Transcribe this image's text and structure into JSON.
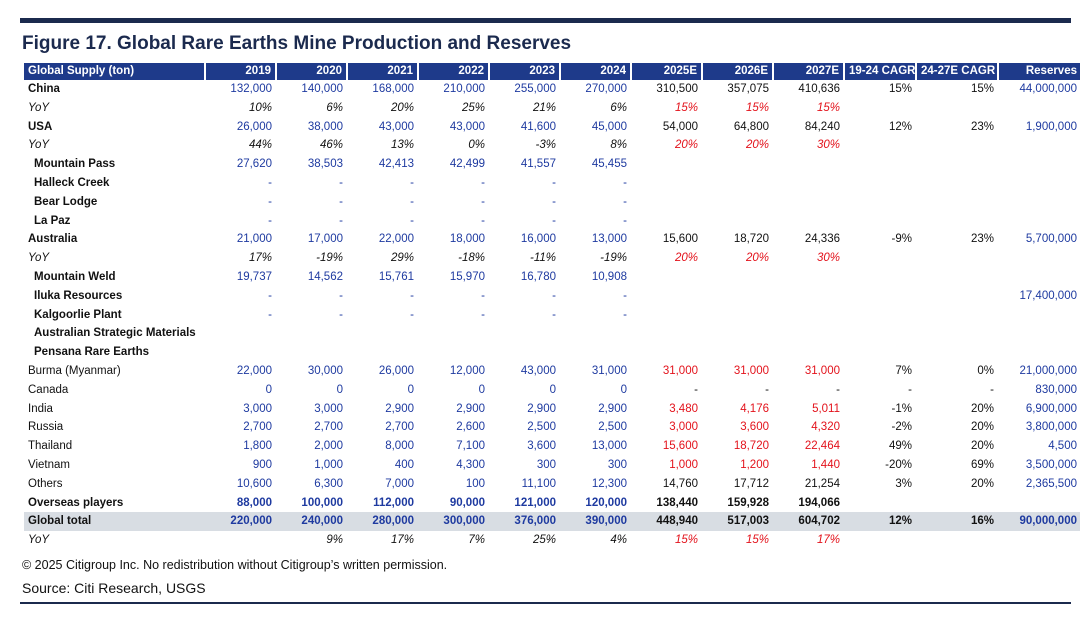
{
  "title": "Figure 17. Global Rare Earths Mine Production and Reserves",
  "header": [
    "Global Supply (ton)",
    "2019",
    "2020",
    "2021",
    "2022",
    "2023",
    "2024",
    "2025E",
    "2026E",
    "2027E",
    "19-24 CAGR",
    "24-27E CAGR",
    "Reserves"
  ],
  "rows": [
    {
      "label": "China",
      "style": "b",
      "values": [
        "132,000",
        "140,000",
        "168,000",
        "210,000",
        "255,000",
        "270,000",
        "310,500",
        "357,075",
        "410,636",
        "15%",
        "15%",
        "44,000,000"
      ]
    },
    {
      "label": "YoY",
      "style": "yoy",
      "values": [
        "10%",
        "6%",
        "20%",
        "25%",
        "21%",
        "6%",
        "15%",
        "15%",
        "15%",
        "",
        "",
        ""
      ]
    },
    {
      "label": "USA",
      "style": "b",
      "values": [
        "26,000",
        "38,000",
        "43,000",
        "43,000",
        "41,600",
        "45,000",
        "54,000",
        "64,800",
        "84,240",
        "12%",
        "23%",
        "1,900,000"
      ]
    },
    {
      "label": "YoY",
      "style": "yoy",
      "values": [
        "44%",
        "46%",
        "13%",
        "0%",
        "-3%",
        "8%",
        "20%",
        "20%",
        "30%",
        "",
        "",
        ""
      ]
    },
    {
      "label": "Mountain Pass",
      "style": "sub",
      "values": [
        "27,620",
        "38,503",
        "42,413",
        "42,499",
        "41,557",
        "45,455",
        "",
        "",
        "",
        "",
        "",
        ""
      ]
    },
    {
      "label": "Halleck Creek",
      "style": "sub",
      "values": [
        "-",
        "-",
        "-",
        "-",
        "-",
        "-",
        "",
        "",
        "",
        "",
        "",
        ""
      ]
    },
    {
      "label": "Bear Lodge",
      "style": "sub",
      "values": [
        "-",
        "-",
        "-",
        "-",
        "-",
        "-",
        "",
        "",
        "",
        "",
        "",
        ""
      ]
    },
    {
      "label": "La Paz",
      "style": "sub",
      "values": [
        "-",
        "-",
        "-",
        "-",
        "-",
        "-",
        "",
        "",
        "",
        "",
        "",
        ""
      ]
    },
    {
      "label": "Australia",
      "style": "b",
      "values": [
        "21,000",
        "17,000",
        "22,000",
        "18,000",
        "16,000",
        "13,000",
        "15,600",
        "18,720",
        "24,336",
        "-9%",
        "23%",
        "5,700,000"
      ]
    },
    {
      "label": "YoY",
      "style": "yoy",
      "values": [
        "17%",
        "-19%",
        "29%",
        "-18%",
        "-11%",
        "-19%",
        "20%",
        "20%",
        "30%",
        "",
        "",
        ""
      ]
    },
    {
      "label": "Mountain Weld",
      "style": "sub",
      "values": [
        "19,737",
        "14,562",
        "15,761",
        "15,970",
        "16,780",
        "10,908",
        "",
        "",
        "",
        "",
        "",
        ""
      ]
    },
    {
      "label": "Iluka Resources",
      "style": "sub",
      "values": [
        "-",
        "-",
        "-",
        "-",
        "-",
        "-",
        "",
        "",
        "",
        "",
        "",
        "17,400,000"
      ]
    },
    {
      "label": "Kalgoorlie Plant",
      "style": "sub",
      "values": [
        "-",
        "-",
        "-",
        "-",
        "-",
        "-",
        "",
        "",
        "",
        "",
        "",
        ""
      ]
    },
    {
      "label": "Australian Strategic Materials",
      "style": "sub",
      "values": [
        "",
        "",
        "",
        "",
        "",
        "",
        "",
        "",
        "",
        "",
        "",
        ""
      ]
    },
    {
      "label": "Pensana Rare Earths",
      "style": "sub",
      "values": [
        "",
        "",
        "",
        "",
        "",
        "",
        "",
        "",
        "",
        "",
        "",
        ""
      ]
    },
    {
      "label": "Burma (Myanmar)",
      "style": "p",
      "values": [
        "22,000",
        "30,000",
        "26,000",
        "12,000",
        "43,000",
        "31,000",
        "31,000",
        "31,000",
        "31,000",
        "7%",
        "0%",
        "21,000,000"
      ]
    },
    {
      "label": "Canada",
      "style": "p",
      "values": [
        "0",
        "0",
        "0",
        "0",
        "0",
        "0",
        "-",
        "-",
        "-",
        "-",
        "-",
        "830,000"
      ]
    },
    {
      "label": "India",
      "style": "p",
      "values": [
        "3,000",
        "3,000",
        "2,900",
        "2,900",
        "2,900",
        "2,900",
        "3,480",
        "4,176",
        "5,011",
        "-1%",
        "20%",
        "6,900,000"
      ]
    },
    {
      "label": "Russia",
      "style": "p",
      "values": [
        "2,700",
        "2,700",
        "2,700",
        "2,600",
        "2,500",
        "2,500",
        "3,000",
        "3,600",
        "4,320",
        "-2%",
        "20%",
        "3,800,000"
      ]
    },
    {
      "label": "Thailand",
      "style": "p",
      "values": [
        "1,800",
        "2,000",
        "8,000",
        "7,100",
        "3,600",
        "13,000",
        "15,600",
        "18,720",
        "22,464",
        "49%",
        "20%",
        "4,500"
      ]
    },
    {
      "label": "Vietnam",
      "style": "p",
      "values": [
        "900",
        "1,000",
        "400",
        "4,300",
        "300",
        "300",
        "1,000",
        "1,200",
        "1,440",
        "-20%",
        "69%",
        "3,500,000"
      ]
    },
    {
      "label": "Others",
      "style": "o",
      "values": [
        "10,600",
        "6,300",
        "7,000",
        "100",
        "11,100",
        "12,300",
        "14,760",
        "17,712",
        "21,254",
        "3%",
        "20%",
        "2,365,500"
      ]
    },
    {
      "label": "Overseas players",
      "style": "bold",
      "values": [
        "88,000",
        "100,000",
        "112,000",
        "90,000",
        "121,000",
        "120,000",
        "138,440",
        "159,928",
        "194,066",
        "",
        "",
        ""
      ]
    },
    {
      "label": "Global total",
      "style": "total",
      "values": [
        "220,000",
        "240,000",
        "280,000",
        "300,000",
        "376,000",
        "390,000",
        "448,940",
        "517,003",
        "604,702",
        "12%",
        "16%",
        "90,000,000"
      ]
    },
    {
      "label": "YoY",
      "style": "yoy",
      "values": [
        "",
        "9%",
        "17%",
        "7%",
        "25%",
        "4%",
        "15%",
        "15%",
        "17%",
        "",
        "",
        ""
      ]
    }
  ],
  "note": "© 2025 Citigroup Inc. No redistribution without Citigroup’s written permission.",
  "source": "Source: Citi Research, USGS"
}
